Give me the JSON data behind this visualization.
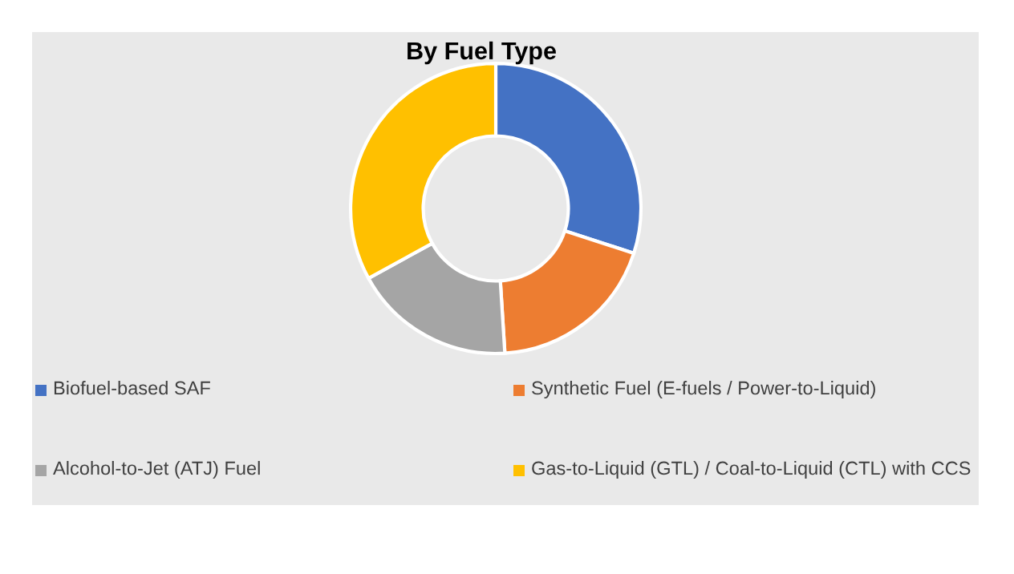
{
  "chart_data": {
    "type": "donut",
    "title": "By Fuel Type",
    "categories": [
      "Biofuel-based SAF",
      "Synthetic Fuel (E-fuels / Power-to-Liquid)",
      "Alcohol-to-Jet (ATJ) Fuel",
      "Gas-to-Liquid (GTL) / Coal-to-Liquid (CTL) with CCS"
    ],
    "values": [
      30,
      19,
      18,
      33
    ],
    "colors": [
      "#4472c4",
      "#ed7d31",
      "#a5a5a5",
      "#ffc000"
    ],
    "legend": "bottom"
  }
}
